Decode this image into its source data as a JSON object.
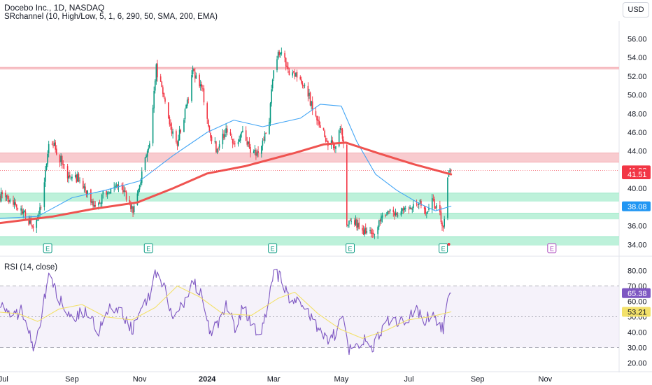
{
  "header": {
    "title": "Docebo Inc., 1D, NASDAQ",
    "indicator": "SRchannel (10, High/Low, 5, 1, 6, 290, 50, SMA, 200, EMA)",
    "rsi_label": "RSI (14, close)",
    "currency": "USD"
  },
  "colors": {
    "up": "#089981",
    "down": "#f23645",
    "ema200": "#ef5350",
    "sma50": "#42a5f5",
    "resistance_zone": "#f8c8cc",
    "support_zone": "#b9f0d8",
    "rsi": "#7e57c2",
    "rsi_ma": "#f3e16a",
    "rsi_band": "#ede7f6"
  },
  "chart_data": [
    {
      "type": "candlestick",
      "title": "Docebo Inc., 1D, NASDAQ",
      "y_axis_ticks": [
        "56.00",
        "54.00",
        "52.00",
        "50.00",
        "48.00",
        "46.00",
        "44.00",
        "42.00",
        "40.00",
        "38.00",
        "36.00",
        "34.00"
      ],
      "ylim": [
        33.2,
        57.0
      ],
      "x_axis_ticks": [
        "Jul",
        "Sep",
        "Nov",
        "2024",
        "Mar",
        "May",
        "Jul",
        "Sep",
        "Nov"
      ],
      "x_tick_dates": [
        "2023-07-01",
        "2023-09-01",
        "2023-11-01",
        "2024-01-01",
        "2024-03-01",
        "2024-05-01",
        "2024-07-01",
        "2024-09-01",
        "2024-11-01"
      ],
      "candle_anchors": [
        [
          "2023-06-28",
          39.2
        ],
        [
          "2023-07-12",
          38.5
        ],
        [
          "2023-07-28",
          36.0
        ],
        [
          "2023-08-05",
          38.5
        ],
        [
          "2023-08-12",
          45.8
        ],
        [
          "2023-08-18",
          44.0
        ],
        [
          "2023-08-28",
          41.5
        ],
        [
          "2023-09-08",
          41.0
        ],
        [
          "2023-09-22",
          38.0
        ],
        [
          "2023-10-02",
          39.8
        ],
        [
          "2023-10-16",
          40.2
        ],
        [
          "2023-10-26",
          37.8
        ],
        [
          "2023-11-03",
          41.5
        ],
        [
          "2023-11-10",
          45.0
        ],
        [
          "2023-11-16",
          52.8
        ],
        [
          "2023-11-21",
          50.5
        ],
        [
          "2023-11-28",
          46.5
        ],
        [
          "2023-12-05",
          45.0
        ],
        [
          "2023-12-12",
          48.0
        ],
        [
          "2023-12-19",
          52.5
        ],
        [
          "2023-12-27",
          51.0
        ],
        [
          "2024-01-03",
          46.0
        ],
        [
          "2024-01-10",
          44.0
        ],
        [
          "2024-01-18",
          46.5
        ],
        [
          "2024-01-25",
          44.5
        ],
        [
          "2024-02-02",
          46.0
        ],
        [
          "2024-02-10",
          44.0
        ],
        [
          "2024-02-17",
          43.2
        ],
        [
          "2024-02-22",
          45.8
        ],
        [
          "2024-02-26",
          47.0
        ],
        [
          "2024-02-29",
          52.0
        ],
        [
          "2024-03-03",
          54.0
        ],
        [
          "2024-03-08",
          55.0
        ],
        [
          "2024-03-14",
          52.5
        ],
        [
          "2024-03-22",
          52.0
        ],
        [
          "2024-03-30",
          51.0
        ],
        [
          "2024-04-05",
          48.5
        ],
        [
          "2024-04-12",
          46.5
        ],
        [
          "2024-04-19",
          44.8
        ],
        [
          "2024-04-26",
          44.5
        ],
        [
          "2024-04-30",
          46.5
        ],
        [
          "2024-05-03",
          44.8
        ],
        [
          "2024-05-06",
          36.5
        ],
        [
          "2024-05-14",
          36.3
        ],
        [
          "2024-05-22",
          35.5
        ],
        [
          "2024-05-30",
          34.8
        ],
        [
          "2024-06-06",
          37.0
        ],
        [
          "2024-06-14",
          37.8
        ],
        [
          "2024-06-22",
          37.3
        ],
        [
          "2024-06-30",
          38.0
        ],
        [
          "2024-07-08",
          38.6
        ],
        [
          "2024-07-16",
          37.6
        ],
        [
          "2024-07-22",
          38.6
        ],
        [
          "2024-07-28",
          37.5
        ],
        [
          "2024-08-01",
          35.5
        ],
        [
          "2024-08-03",
          37.2
        ],
        [
          "2024-08-05",
          41.5
        ],
        [
          "2024-08-07",
          41.9
        ],
        [
          "2024-08-08",
          42.3
        ]
      ],
      "series": [
        {
          "name": "",
          "kind": "ema",
          "color": "#ef5350",
          "points": [
            [
              "2023-06-28",
              36.3
            ],
            [
              "2023-08-15",
              37.0
            ],
            [
              "2023-09-20",
              37.8
            ],
            [
              "2023-10-30",
              38.5
            ],
            [
              "2023-12-01",
              40.0
            ],
            [
              "2024-01-01",
              41.6
            ],
            [
              "2024-02-05",
              42.4
            ],
            [
              "2024-03-20",
              43.8
            ],
            [
              "2024-04-15",
              44.7
            ],
            [
              "2024-05-05",
              44.9
            ],
            [
              "2024-06-05",
              43.7
            ],
            [
              "2024-07-05",
              42.6
            ],
            [
              "2024-08-08",
              41.5
            ]
          ]
        },
        {
          "name": "",
          "kind": "sma",
          "color": "#42a5f5",
          "points": [
            [
              "2023-06-28",
              36.8
            ],
            [
              "2023-08-01",
              37.0
            ],
            [
              "2023-09-01",
              39.0
            ],
            [
              "2023-10-01",
              39.8
            ],
            [
              "2023-11-01",
              40.8
            ],
            [
              "2023-12-01",
              43.5
            ],
            [
              "2024-01-01",
              46.0
            ],
            [
              "2024-01-25",
              47.3
            ],
            [
              "2024-02-20",
              46.6
            ],
            [
              "2024-03-25",
              47.5
            ],
            [
              "2024-04-12",
              49.0
            ],
            [
              "2024-05-01",
              48.8
            ],
            [
              "2024-05-15",
              45.0
            ],
            [
              "2024-06-01",
              41.5
            ],
            [
              "2024-06-20",
              39.8
            ],
            [
              "2024-07-10",
              38.4
            ],
            [
              "2024-07-25",
              37.6
            ],
            [
              "2024-08-08",
              38.1
            ]
          ]
        }
      ],
      "zones": [
        {
          "kind": "resistance",
          "low": 52.75,
          "high": 52.95,
          "start": "2023-06-28"
        },
        {
          "kind": "resistance",
          "low": 42.8,
          "high": 43.8,
          "start": "2023-06-28"
        },
        {
          "kind": "support",
          "low": 38.6,
          "high": 39.5,
          "start": "2023-06-28"
        },
        {
          "kind": "support",
          "low": 36.7,
          "high": 37.35,
          "start": "2023-06-28"
        },
        {
          "kind": "support",
          "low": 33.9,
          "high": 34.85,
          "start": "2023-06-28"
        }
      ],
      "price_labels": [
        {
          "text": "41.93",
          "value": 41.93,
          "color": "#f23645"
        },
        {
          "text": "41.51",
          "value": 41.51,
          "color": "#f23645"
        },
        {
          "text": "38.08",
          "value": 38.08,
          "color": "#2196f3"
        }
      ],
      "earnings_markers": [
        {
          "date": "2023-08-10",
          "label": "E",
          "upcoming": false
        },
        {
          "date": "2023-11-09",
          "label": "E",
          "upcoming": false
        },
        {
          "date": "2024-02-29",
          "label": "E",
          "upcoming": false
        },
        {
          "date": "2024-05-09",
          "label": "E",
          "upcoming": false
        },
        {
          "date": "2024-08-01",
          "label": "E",
          "upcoming": false
        },
        {
          "date": "2024-11-07",
          "label": "E",
          "upcoming": true
        }
      ]
    },
    {
      "type": "line",
      "title": "RSI (14, close)",
      "y_axis_ticks": [
        "80.00",
        "70.00",
        "60.00",
        "50.00",
        "40.00",
        "30.00",
        "20.00"
      ],
      "ylim": [
        18.0,
        83.0
      ],
      "levels": [
        70,
        50,
        30
      ],
      "series": [
        {
          "name": "RSI",
          "color": "#7e57c2",
          "points": [
            [
              "2023-06-28",
              60
            ],
            [
              "2023-07-08",
              48
            ],
            [
              "2023-07-18",
              55
            ],
            [
              "2023-07-28",
              32
            ],
            [
              "2023-08-04",
              50
            ],
            [
              "2023-08-12",
              78
            ],
            [
              "2023-08-20",
              62
            ],
            [
              "2023-09-02",
              48
            ],
            [
              "2023-09-14",
              55
            ],
            [
              "2023-09-24",
              40
            ],
            [
              "2023-10-04",
              55
            ],
            [
              "2023-10-16",
              52
            ],
            [
              "2023-10-26",
              42
            ],
            [
              "2023-11-03",
              55
            ],
            [
              "2023-11-10",
              62
            ],
            [
              "2023-11-16",
              80
            ],
            [
              "2023-11-22",
              72
            ],
            [
              "2023-11-30",
              52
            ],
            [
              "2023-12-08",
              55
            ],
            [
              "2023-12-14",
              66
            ],
            [
              "2023-12-20",
              72
            ],
            [
              "2023-12-28",
              62
            ],
            [
              "2024-01-04",
              40
            ],
            [
              "2024-01-12",
              45
            ],
            [
              "2024-01-20",
              60
            ],
            [
              "2024-01-26",
              43
            ],
            [
              "2024-02-03",
              57
            ],
            [
              "2024-02-10",
              45
            ],
            [
              "2024-02-18",
              40
            ],
            [
              "2024-02-24",
              55
            ],
            [
              "2024-03-01",
              77
            ],
            [
              "2024-03-07",
              76
            ],
            [
              "2024-03-15",
              62
            ],
            [
              "2024-03-22",
              62
            ],
            [
              "2024-03-29",
              56
            ],
            [
              "2024-04-06",
              48
            ],
            [
              "2024-04-13",
              40
            ],
            [
              "2024-04-20",
              36
            ],
            [
              "2024-04-26",
              38
            ],
            [
              "2024-05-01",
              52
            ],
            [
              "2024-05-05",
              45
            ],
            [
              "2024-05-07",
              27
            ],
            [
              "2024-05-14",
              33
            ],
            [
              "2024-05-22",
              34
            ],
            [
              "2024-05-30",
              30
            ],
            [
              "2024-06-07",
              43
            ],
            [
              "2024-06-14",
              48
            ],
            [
              "2024-06-22",
              46
            ],
            [
              "2024-06-30",
              50
            ],
            [
              "2024-07-08",
              54
            ],
            [
              "2024-07-16",
              48
            ],
            [
              "2024-07-22",
              52
            ],
            [
              "2024-07-28",
              44
            ],
            [
              "2024-08-01",
              42
            ],
            [
              "2024-08-03",
              47
            ],
            [
              "2024-08-05",
              62
            ],
            [
              "2024-08-07",
              65.4
            ],
            [
              "2024-08-08",
              65.38
            ]
          ]
        },
        {
          "name": "",
          "color": "#f3e16a",
          "points": [
            [
              "2023-06-28",
              53
            ],
            [
              "2023-07-15",
              52
            ],
            [
              "2023-08-01",
              47
            ],
            [
              "2023-08-20",
              55
            ],
            [
              "2023-09-10",
              58
            ],
            [
              "2023-10-01",
              50
            ],
            [
              "2023-10-25",
              48
            ],
            [
              "2023-11-15",
              56
            ],
            [
              "2023-12-05",
              70
            ],
            [
              "2023-12-25",
              63
            ],
            [
              "2024-01-15",
              52
            ],
            [
              "2024-02-10",
              51
            ],
            [
              "2024-03-05",
              62
            ],
            [
              "2024-03-20",
              66
            ],
            [
              "2024-04-10",
              52
            ],
            [
              "2024-04-30",
              42
            ],
            [
              "2024-05-20",
              36
            ],
            [
              "2024-06-10",
              41
            ],
            [
              "2024-06-30",
              48
            ],
            [
              "2024-07-20",
              50
            ],
            [
              "2024-08-08",
              53.21
            ]
          ]
        }
      ],
      "price_labels": [
        {
          "text": "65.38",
          "value": 65.38,
          "color": "#7e57c2"
        },
        {
          "text": "53.21",
          "value": 53.21,
          "color": "#f3e16a"
        }
      ]
    }
  ]
}
